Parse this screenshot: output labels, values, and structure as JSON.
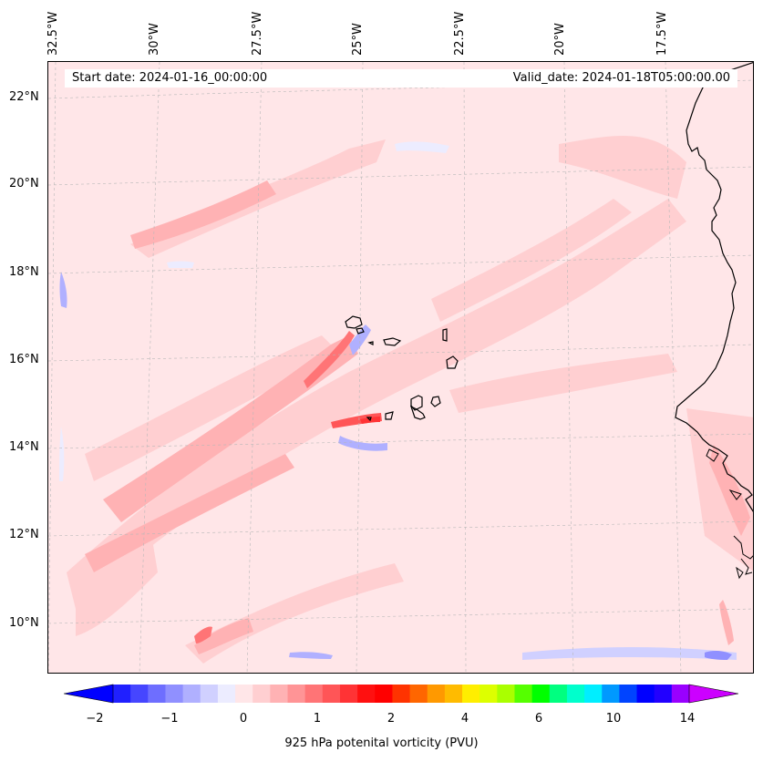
{
  "header": {
    "start_date": "Start date: 2024-01-16_00:00:00",
    "valid_date": "Valid_date: 2024-01-18T05:00:00.00"
  },
  "longitude_labels": [
    "32.5°W",
    "30°W",
    "27.5°W",
    "25°W",
    "22.5°W",
    "20°W",
    "17.5°W"
  ],
  "latitude_labels": [
    "22°N",
    "20°N",
    "18°N",
    "16°N",
    "14°N",
    "12°N",
    "10°N"
  ],
  "colorbar": {
    "label": "925 hPa potenital vorticity (PVU)",
    "ticks": [
      "−2",
      "−1",
      "0",
      "1",
      "2",
      "4",
      "6",
      "10",
      "14"
    ],
    "colors": [
      "#0000ff",
      "#2020ff",
      "#4646ff",
      "#6e6eff",
      "#9090ff",
      "#b0b0ff",
      "#d0d0ff",
      "#ececff",
      "#ffe6e8",
      "#ffcfd1",
      "#ffb2b4",
      "#ff9496",
      "#ff7476",
      "#ff5557",
      "#ff3335",
      "#ff1010",
      "#ff0000",
      "#ff3300",
      "#ff6600",
      "#ff9900",
      "#ffbb00",
      "#ffee00",
      "#ddff00",
      "#aaff00",
      "#55ff00",
      "#00ff00",
      "#00ff80",
      "#00ffcc",
      "#00eeff",
      "#0099ff",
      "#0044ff",
      "#0000ff",
      "#2200ff",
      "#9900ff",
      "#cc00ff"
    ]
  }
}
